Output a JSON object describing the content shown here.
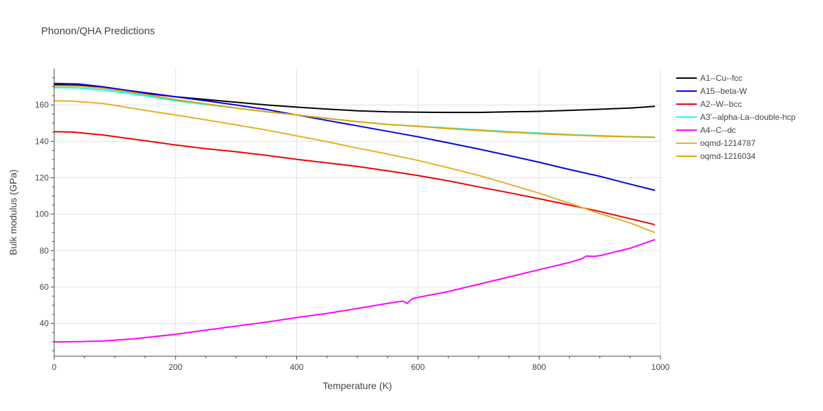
{
  "chart_data": {
    "type": "line",
    "title": "Phonon/QHA Predictions",
    "xlabel": "Temperature (K)",
    "ylabel": "Bulk modulus (GPa)",
    "xlim": [
      0,
      1000
    ],
    "ylim": [
      22,
      180
    ],
    "xticks": [
      0,
      200,
      400,
      600,
      800,
      1000
    ],
    "yticks": [
      40,
      60,
      80,
      100,
      120,
      140,
      160
    ],
    "grid": true,
    "legend_position": "top-right",
    "series": [
      {
        "name": "A1--Cu--fcc",
        "color": "#000000",
        "x": [
          0,
          40,
          80,
          120,
          160,
          200,
          250,
          300,
          350,
          400,
          450,
          500,
          550,
          600,
          650,
          700,
          750,
          800,
          850,
          900,
          950,
          990
        ],
        "y": [
          171,
          170.8,
          169.5,
          167.5,
          166,
          164.5,
          163,
          161.5,
          160,
          158.8,
          157.7,
          156.8,
          156.2,
          156,
          155.9,
          155.9,
          156.2,
          156.5,
          157,
          157.6,
          158.3,
          159.2
        ]
      },
      {
        "name": "A15--beta-W",
        "color": "#0000ee",
        "x": [
          0,
          40,
          80,
          120,
          160,
          200,
          250,
          300,
          350,
          400,
          450,
          500,
          550,
          600,
          650,
          700,
          750,
          800,
          850,
          900,
          950,
          990
        ],
        "y": [
          171.8,
          171.5,
          170,
          168,
          166.3,
          164.5,
          162.3,
          160,
          157.5,
          154.5,
          151.5,
          148.5,
          145.5,
          142.5,
          139.2,
          135.8,
          132.2,
          128.5,
          124.5,
          120.8,
          116.5,
          113.2
        ]
      },
      {
        "name": "A2--W--bcc",
        "color": "#ee0000",
        "x": [
          0,
          30,
          80,
          140,
          200,
          250,
          300,
          350,
          400,
          450,
          500,
          550,
          600,
          650,
          700,
          750,
          800,
          850,
          900,
          950,
          990
        ],
        "y": [
          145.3,
          145.1,
          143.5,
          140.8,
          138,
          136,
          134.3,
          132.3,
          130.1,
          128.2,
          126.2,
          123.8,
          121.2,
          118.3,
          115,
          111.8,
          108.5,
          105,
          101.5,
          97.5,
          94.3
        ]
      },
      {
        "name": "A3'--alpha-La--double-hcp",
        "color": "#00ffff",
        "x": [
          0,
          40,
          80,
          120,
          160,
          200,
          250,
          300,
          350,
          400,
          450,
          500,
          550,
          600,
          650,
          700,
          750,
          800,
          850,
          900,
          950,
          990
        ],
        "y": [
          169.5,
          169.3,
          168.2,
          166.5,
          164.5,
          162.3,
          160.3,
          158.2,
          156.2,
          154.5,
          152.5,
          150.8,
          149.3,
          148.3,
          147.3,
          146.3,
          145.3,
          144.5,
          143.7,
          143.1,
          142.6,
          142.3
        ]
      },
      {
        "name": "A4--C--dc",
        "color": "#ff00ff",
        "x": [
          0,
          40,
          80,
          130,
          200,
          250,
          300,
          350,
          400,
          450,
          500,
          550,
          575,
          582,
          590,
          600,
          650,
          700,
          750,
          800,
          850,
          870,
          878,
          890,
          900,
          950,
          990
        ],
        "y": [
          29.8,
          30,
          30.3,
          31.5,
          34,
          36.3,
          38.5,
          40.7,
          43.2,
          45.5,
          48.2,
          51,
          52.3,
          51,
          53.5,
          54.3,
          57.5,
          61.5,
          65.5,
          69.5,
          73.5,
          75.5,
          77,
          76.8,
          77.2,
          81.3,
          86
        ]
      },
      {
        "name": "oqmd-1214787",
        "color": "#e6b020",
        "x": [
          0,
          30,
          80,
          150,
          200,
          250,
          300,
          350,
          400,
          450,
          500,
          550,
          600,
          650,
          700,
          750,
          800,
          850,
          900,
          950,
          990
        ],
        "y": [
          162.3,
          162.1,
          160.8,
          157,
          154.5,
          151.8,
          149,
          146.2,
          143,
          139.8,
          136.3,
          133,
          129.5,
          125.5,
          121.3,
          116.5,
          111.5,
          106,
          100.3,
          95.2,
          90
        ]
      },
      {
        "name": "oqmd-1216034",
        "color": "#e8a000",
        "x": [
          0,
          40,
          80,
          120,
          160,
          200,
          250,
          300,
          350,
          400,
          450,
          500,
          550,
          600,
          650,
          700,
          750,
          800,
          850,
          900,
          950,
          990
        ],
        "y": [
          170.5,
          170.3,
          169.2,
          167.3,
          165.3,
          163,
          160.6,
          158.3,
          156.3,
          154.5,
          152.6,
          150.8,
          149.3,
          148.2,
          147,
          146,
          145,
          144.2,
          143.5,
          142.9,
          142.5,
          142.2
        ]
      }
    ]
  }
}
